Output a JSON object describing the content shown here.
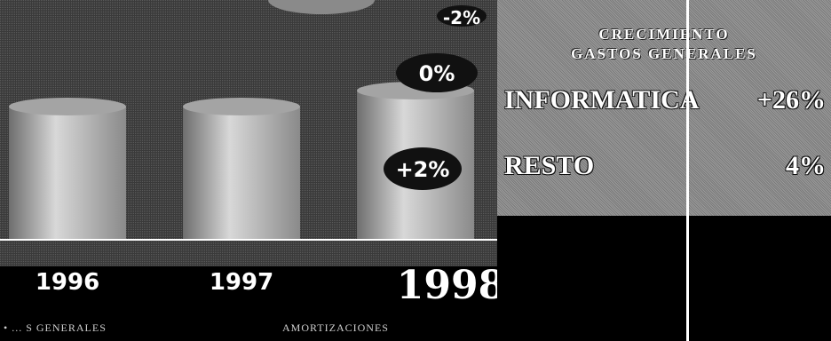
{
  "chart_data": {
    "type": "bar",
    "categories": [
      "1996",
      "1997",
      "1998"
    ],
    "series": [
      {
        "name": "",
        "values": [
          1.0,
          1.0,
          1.02
        ]
      }
    ],
    "annotations": [
      "-2%",
      "0%",
      "+2%"
    ],
    "colors": {
      "bar": "#b8b8b8",
      "annotation_bg": "#111111",
      "background": "#000000"
    }
  },
  "legend": {
    "left": "• ... S GENERALES",
    "right": "AMORTIZACIONES"
  },
  "panel": {
    "title_line1": "CRECIMIENTO",
    "title_line2": "GASTOS GENERALES",
    "rows": [
      {
        "label": "INFORMATICA",
        "value": "+26%"
      },
      {
        "label": "RESTO",
        "value": "4%"
      }
    ]
  }
}
